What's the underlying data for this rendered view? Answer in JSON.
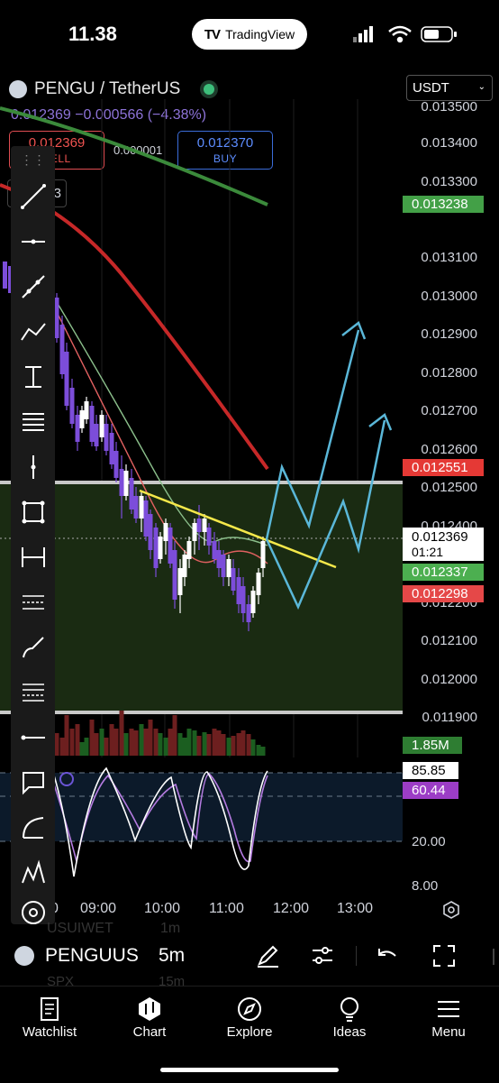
{
  "status_bar": {
    "time": "11.38",
    "app_pill": "TradingView"
  },
  "header": {
    "symbol": "PENGU / TetherUS",
    "last_price": "0.012369",
    "change": "−0.000566 (−4.38%)",
    "currency": "USDT"
  },
  "trade": {
    "sell_price": "0.012369",
    "sell_label": "SELL",
    "spread": "0.000001",
    "buy_price": "0.012370",
    "buy_label": "BUY",
    "hidden_label": "3"
  },
  "price_axis": [
    "0.013500",
    "0.013400",
    "0.013300",
    "0.013100",
    "0.013000",
    "0.012900",
    "0.012800",
    "0.012700",
    "0.012600",
    "0.012500",
    "0.012400",
    "0.012200",
    "0.012100",
    "0.012000",
    "0.011900"
  ],
  "price_tags": {
    "ma_green": "0.013238",
    "ma_red": "0.012551",
    "current": "0.012369",
    "countdown": "01:21",
    "ma_fast": "0.012337",
    "ma_slow": "0.012298",
    "volume": "1.85M"
  },
  "oscillator": {
    "k": "85.85",
    "d": "60.44",
    "levels": [
      "20.00",
      "8.00"
    ]
  },
  "time_axis": [
    "09:00",
    "10:00",
    "11:00",
    "12:00",
    "13:00"
  ],
  "bottom_bar": {
    "symbol": "PENGUUS",
    "interval": "5m",
    "ghost_symbol_1": "USUIWET",
    "ghost_interval_1": "1m",
    "ghost_symbol_2": "SPX",
    "ghost_interval_2": "15m"
  },
  "nav": {
    "watchlist": "Watchlist",
    "chart": "Chart",
    "explore": "Explore",
    "ideas": "Ideas",
    "menu": "Menu"
  },
  "colors": {
    "up": "#ffffff",
    "down": "#7c4dda",
    "ma_red": "#e53935",
    "ma_green": "#43a047",
    "trend": "#f5e84a",
    "arrow": "#5ab7d8",
    "zone": "#1a2b12"
  }
}
